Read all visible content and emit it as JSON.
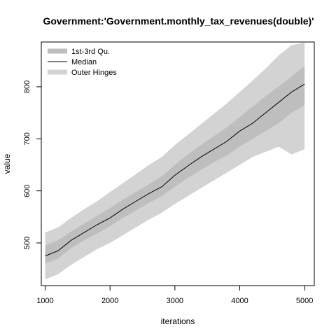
{
  "chart_data": {
    "type": "area",
    "title": "Government:'Government.monthly_tax_revenues(double)'",
    "xlabel": "iterations",
    "ylabel": "value",
    "xlim": [
      940,
      5150
    ],
    "ylim": [
      418,
      886
    ],
    "x_ticks": [
      1000,
      2000,
      3000,
      4000,
      5000
    ],
    "y_ticks": [
      500,
      600,
      700,
      800
    ],
    "grid": false,
    "legend_position": "top-left",
    "legend": [
      {
        "label": "1st-3rd Qu.",
        "color": "#bebebe"
      },
      {
        "label": "Median",
        "color": "#000000"
      },
      {
        "label": "Outer Hinges",
        "color": "#d3d3d3"
      }
    ],
    "x": [
      1000,
      1200,
      1400,
      1600,
      1800,
      2000,
      2200,
      2400,
      2600,
      2800,
      3000,
      3200,
      3400,
      3600,
      3800,
      4000,
      4200,
      4400,
      4600,
      4800,
      5000
    ],
    "series": [
      {
        "name": "Median",
        "values": [
          475,
          485,
          505,
          520,
          535,
          548,
          565,
          580,
          595,
          608,
          630,
          648,
          665,
          680,
          695,
          715,
          730,
          750,
          770,
          790,
          805
        ]
      },
      {
        "name": "1st-3rd Qu.",
        "lower": [
          460,
          470,
          490,
          505,
          518,
          532,
          548,
          562,
          577,
          590,
          608,
          625,
          640,
          655,
          668,
          685,
          700,
          715,
          730,
          750,
          765
        ],
        "upper": [
          495,
          505,
          522,
          537,
          552,
          567,
          583,
          598,
          613,
          628,
          650,
          670,
          688,
          705,
          722,
          742,
          762,
          782,
          800,
          820,
          840
        ]
      },
      {
        "name": "Outer Hinges",
        "lower": [
          430,
          440,
          458,
          473,
          488,
          500,
          515,
          530,
          545,
          558,
          575,
          590,
          605,
          620,
          635,
          650,
          665,
          675,
          685,
          670,
          680
        ],
        "upper": [
          520,
          530,
          548,
          565,
          580,
          598,
          615,
          632,
          650,
          665,
          688,
          708,
          728,
          748,
          768,
          790,
          812,
          835,
          860,
          880,
          885
        ]
      }
    ]
  }
}
